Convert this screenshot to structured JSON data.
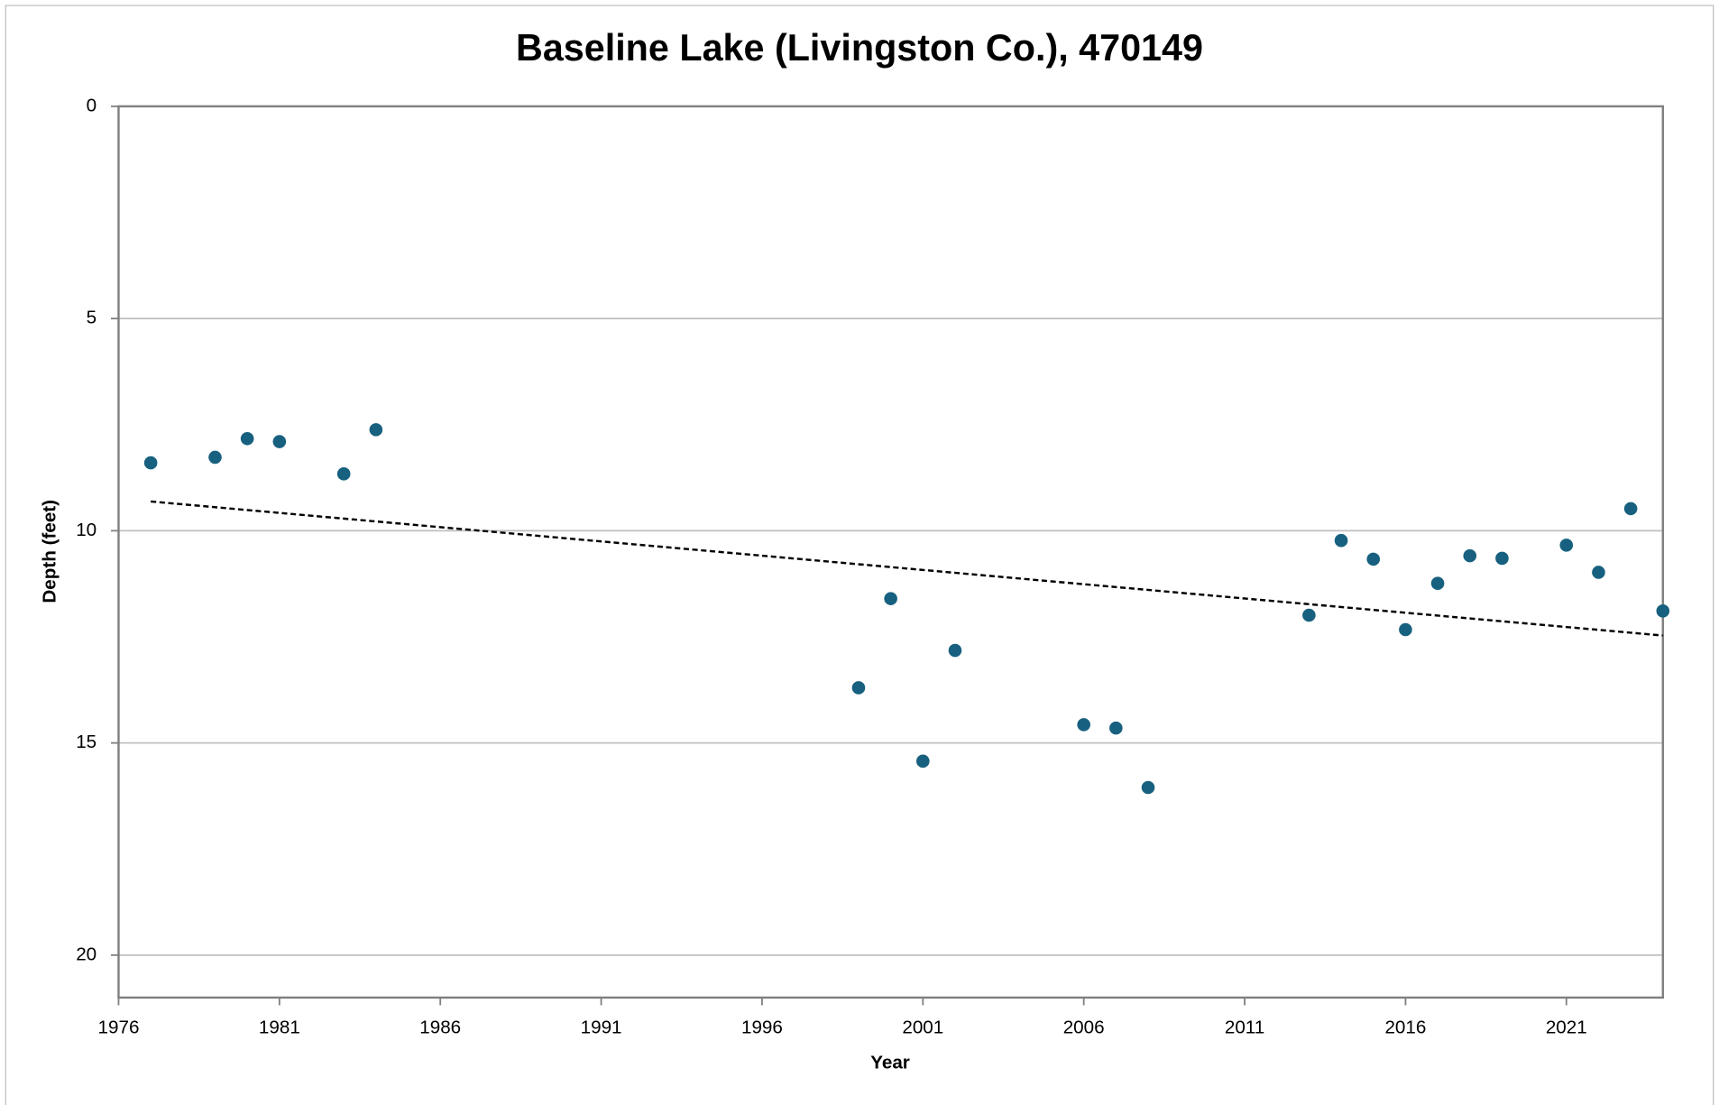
{
  "chart_data": {
    "type": "scatter",
    "title": "Baseline Lake (Livingston Co.), 470149",
    "x_label": "Year",
    "y_label": "Depth (feet)",
    "x": [
      1977,
      1979,
      1980,
      1981,
      1983,
      1984,
      1999,
      2000,
      2001,
      2002,
      2006,
      2007,
      2008,
      2013,
      2014,
      2015,
      2016,
      2017,
      2018,
      2019,
      2021,
      2022,
      2023,
      2024
    ],
    "values": [
      8.4,
      8.27,
      7.83,
      7.9,
      8.66,
      7.62,
      13.7,
      11.6,
      15.43,
      12.82,
      14.57,
      14.65,
      16.05,
      11.99,
      10.23,
      10.67,
      12.33,
      11.24,
      10.59,
      10.65,
      10.34,
      10.98,
      9.48,
      11.89
    ],
    "color": "#17607f",
    "xlim": [
      1976,
      2024
    ],
    "xticks": [
      1976,
      1981,
      1986,
      1991,
      1996,
      2001,
      2006,
      2011,
      2016,
      2021
    ],
    "ylim": [
      0,
      21
    ],
    "yticks": [
      0,
      5,
      10,
      15,
      20
    ],
    "y_inverted": true,
    "grid": true,
    "trendline": true
  }
}
